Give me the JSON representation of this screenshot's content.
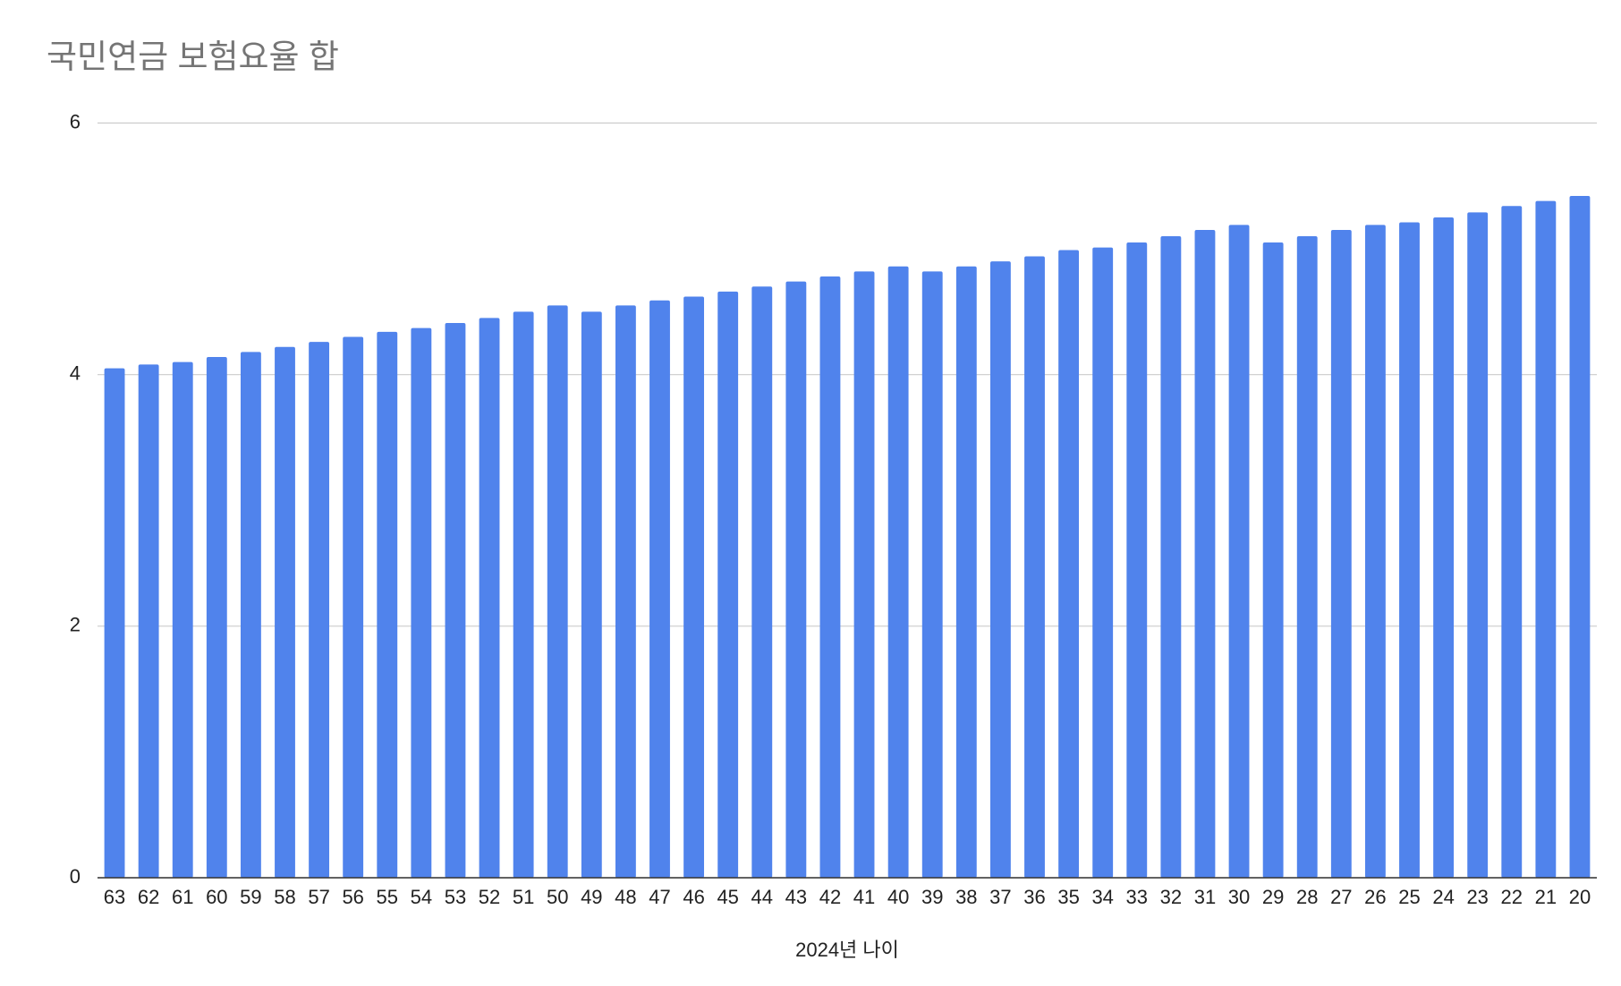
{
  "chart_data": {
    "type": "bar",
    "title": "국민연금 보험요율 합",
    "x_label": "2024년 나이",
    "categories": [
      "63",
      "62",
      "61",
      "60",
      "59",
      "58",
      "57",
      "56",
      "55",
      "54",
      "53",
      "52",
      "51",
      "50",
      "49",
      "48",
      "47",
      "46",
      "45",
      "44",
      "43",
      "42",
      "41",
      "40",
      "39",
      "38",
      "37",
      "36",
      "35",
      "34",
      "33",
      "32",
      "31",
      "30",
      "29",
      "28",
      "27",
      "26",
      "25",
      "24",
      "23",
      "22",
      "21",
      "20"
    ],
    "values": [
      4.05,
      4.08,
      4.1,
      4.14,
      4.18,
      4.22,
      4.26,
      4.3,
      4.34,
      4.37,
      4.41,
      4.45,
      4.5,
      4.55,
      4.5,
      4.55,
      4.59,
      4.62,
      4.66,
      4.7,
      4.74,
      4.78,
      4.82,
      4.86,
      4.82,
      4.86,
      4.9,
      4.94,
      4.99,
      5.01,
      5.05,
      5.1,
      5.15,
      5.19,
      5.05,
      5.1,
      5.15,
      5.19,
      5.21,
      5.25,
      5.29,
      5.34,
      5.38,
      5.42
    ],
    "color": "#5083ec",
    "ylim": [
      0,
      6
    ],
    "yticks": [
      0,
      2,
      4,
      6
    ],
    "grid": true
  }
}
